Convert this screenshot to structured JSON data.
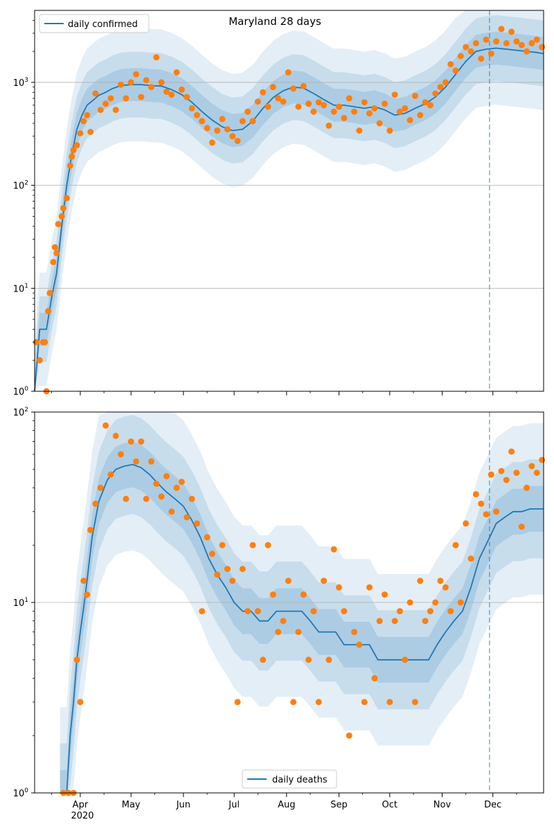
{
  "figure_title": "Maryland 28 days",
  "chart_data": [
    {
      "type": "line",
      "title": "Maryland 28 days",
      "xlabel": "",
      "ylabel": "",
      "yscale": "log",
      "ylim": [
        1,
        5000
      ],
      "xlim": [
        "2020-03-05",
        "2020-12-31"
      ],
      "grid": "y",
      "legend_position": "top-left",
      "ytick_labels": [
        "10^0",
        "10^1",
        "10^2",
        "10^3"
      ],
      "ytick_values": [
        1,
        10,
        100,
        1000
      ],
      "vline": "2020-11-29",
      "series": [
        {
          "name": "daily confirmed",
          "kind": "line",
          "color": "#1f77b4",
          "x": [
            "2020-03-05",
            "2020-03-08",
            "2020-03-12",
            "2020-03-15",
            "2020-03-18",
            "2020-03-21",
            "2020-03-24",
            "2020-03-27",
            "2020-03-30",
            "2020-04-02",
            "2020-04-05",
            "2020-04-09",
            "2020-04-12",
            "2020-04-16",
            "2020-04-20",
            "2020-04-25",
            "2020-05-01",
            "2020-05-07",
            "2020-05-13",
            "2020-05-19",
            "2020-05-25",
            "2020-05-31",
            "2020-06-06",
            "2020-06-12",
            "2020-06-18",
            "2020-06-24",
            "2020-06-30",
            "2020-07-06",
            "2020-07-12",
            "2020-07-18",
            "2020-07-24",
            "2020-07-30",
            "2020-08-05",
            "2020-08-11",
            "2020-08-17",
            "2020-08-23",
            "2020-08-29",
            "2020-09-04",
            "2020-09-10",
            "2020-09-16",
            "2020-09-22",
            "2020-09-28",
            "2020-10-04",
            "2020-10-10",
            "2020-10-16",
            "2020-10-22",
            "2020-10-28",
            "2020-11-03",
            "2020-11-09",
            "2020-11-15",
            "2020-11-21",
            "2020-11-27",
            "2020-12-03",
            "2020-12-09",
            "2020-12-15",
            "2020-12-21",
            "2020-12-27",
            "2020-12-31"
          ],
          "y": [
            1,
            4,
            4,
            8,
            14,
            40,
            100,
            200,
            350,
            480,
            600,
            680,
            750,
            800,
            870,
            930,
            950,
            950,
            930,
            920,
            850,
            760,
            640,
            520,
            430,
            370,
            340,
            350,
            420,
            560,
            710,
            830,
            900,
            880,
            780,
            680,
            600,
            600,
            580,
            560,
            580,
            540,
            480,
            500,
            560,
            620,
            720,
            900,
            1200,
            1600,
            2000,
            2100,
            2150,
            2100,
            2050,
            2000,
            1950,
            1900
          ]
        },
        {
          "name": "",
          "kind": "points",
          "color": "#ff7f0e",
          "x": [
            "2020-03-06",
            "2020-03-08",
            "2020-03-10",
            "2020-03-11",
            "2020-03-12",
            "2020-03-13",
            "2020-03-14",
            "2020-03-16",
            "2020-03-17",
            "2020-03-18",
            "2020-03-19",
            "2020-03-21",
            "2020-03-22",
            "2020-03-24",
            "2020-03-26",
            "2020-03-27",
            "2020-03-28",
            "2020-03-30",
            "2020-04-01",
            "2020-04-03",
            "2020-04-05",
            "2020-04-07",
            "2020-04-10",
            "2020-04-13",
            "2020-04-16",
            "2020-04-19",
            "2020-04-22",
            "2020-04-25",
            "2020-04-28",
            "2020-05-01",
            "2020-05-04",
            "2020-05-07",
            "2020-05-10",
            "2020-05-13",
            "2020-05-16",
            "2020-05-19",
            "2020-05-22",
            "2020-05-25",
            "2020-05-28",
            "2020-05-31",
            "2020-06-03",
            "2020-06-06",
            "2020-06-09",
            "2020-06-12",
            "2020-06-15",
            "2020-06-18",
            "2020-06-21",
            "2020-06-24",
            "2020-06-27",
            "2020-06-30",
            "2020-07-03",
            "2020-07-06",
            "2020-07-09",
            "2020-07-12",
            "2020-07-15",
            "2020-07-18",
            "2020-07-21",
            "2020-07-24",
            "2020-07-27",
            "2020-07-30",
            "2020-08-02",
            "2020-08-05",
            "2020-08-08",
            "2020-08-11",
            "2020-08-14",
            "2020-08-17",
            "2020-08-20",
            "2020-08-23",
            "2020-08-26",
            "2020-08-29",
            "2020-09-01",
            "2020-09-04",
            "2020-09-07",
            "2020-09-10",
            "2020-09-13",
            "2020-09-16",
            "2020-09-19",
            "2020-09-22",
            "2020-09-25",
            "2020-09-28",
            "2020-10-01",
            "2020-10-04",
            "2020-10-07",
            "2020-10-10",
            "2020-10-13",
            "2020-10-16",
            "2020-10-19",
            "2020-10-22",
            "2020-10-25",
            "2020-10-28",
            "2020-10-31",
            "2020-11-03",
            "2020-11-06",
            "2020-11-09",
            "2020-11-12",
            "2020-11-15",
            "2020-11-18",
            "2020-11-21",
            "2020-11-24",
            "2020-11-27",
            "2020-11-30",
            "2020-12-03",
            "2020-12-06",
            "2020-12-09",
            "2020-12-12",
            "2020-12-15",
            "2020-12-18",
            "2020-12-21",
            "2020-12-24",
            "2020-12-27",
            "2020-12-30"
          ],
          "y": [
            3,
            2,
            3,
            3,
            1,
            6,
            9,
            18,
            25,
            22,
            42,
            50,
            60,
            75,
            155,
            190,
            220,
            245,
            320,
            420,
            480,
            330,
            780,
            540,
            620,
            700,
            540,
            950,
            700,
            1000,
            1200,
            720,
            1050,
            900,
            1750,
            1000,
            810,
            760,
            1250,
            850,
            720,
            560,
            480,
            420,
            360,
            260,
            340,
            440,
            350,
            300,
            270,
            420,
            520,
            420,
            650,
            800,
            580,
            900,
            700,
            650,
            1250,
            870,
            580,
            920,
            620,
            520,
            640,
            600,
            380,
            520,
            580,
            450,
            700,
            520,
            340,
            640,
            500,
            560,
            400,
            620,
            340,
            760,
            520,
            560,
            430,
            740,
            480,
            640,
            600,
            780,
            900,
            1000,
            1500,
            1300,
            1800,
            2200,
            2000,
            2400,
            1700,
            2600,
            1900,
            2500,
            3300,
            2400,
            3100,
            2500,
            2300,
            2000,
            2400,
            2600,
            2200
          ]
        }
      ]
    },
    {
      "type": "line",
      "title": "",
      "xlabel": "",
      "ylabel": "",
      "yscale": "log",
      "ylim": [
        1,
        100
      ],
      "xlim": [
        "2020-03-05",
        "2020-12-31"
      ],
      "grid": "y",
      "legend_position": "bottom-center",
      "ytick_labels": [
        "10^0",
        "10^1",
        "10^2"
      ],
      "ytick_values": [
        1,
        10,
        100
      ],
      "xtick_labels": [
        "Apr",
        "May",
        "Jun",
        "Jul",
        "Aug",
        "Sep",
        "Oct",
        "Nov",
        "Dec"
      ],
      "xtick_values": [
        "2020-04-01",
        "2020-05-01",
        "2020-06-01",
        "2020-07-01",
        "2020-08-01",
        "2020-09-01",
        "2020-10-01",
        "2020-11-01",
        "2020-12-01"
      ],
      "year_label": "2020",
      "vline": "2020-11-29",
      "series": [
        {
          "name": "daily deaths",
          "kind": "line",
          "color": "#1f77b4",
          "x": [
            "2020-03-20",
            "2020-03-24",
            "2020-03-26",
            "2020-03-28",
            "2020-03-30",
            "2020-04-01",
            "2020-04-04",
            "2020-04-08",
            "2020-04-12",
            "2020-04-17",
            "2020-04-22",
            "2020-04-27",
            "2020-05-02",
            "2020-05-07",
            "2020-05-12",
            "2020-05-17",
            "2020-05-22",
            "2020-05-27",
            "2020-06-01",
            "2020-06-06",
            "2020-06-11",
            "2020-06-16",
            "2020-06-21",
            "2020-06-26",
            "2020-07-01",
            "2020-07-06",
            "2020-07-11",
            "2020-07-16",
            "2020-07-21",
            "2020-07-26",
            "2020-07-31",
            "2020-08-05",
            "2020-08-10",
            "2020-08-15",
            "2020-08-20",
            "2020-08-25",
            "2020-08-30",
            "2020-09-04",
            "2020-09-09",
            "2020-09-14",
            "2020-09-19",
            "2020-09-24",
            "2020-09-29",
            "2020-10-04",
            "2020-10-09",
            "2020-10-14",
            "2020-10-19",
            "2020-10-24",
            "2020-10-29",
            "2020-11-03",
            "2020-11-08",
            "2020-11-13",
            "2020-11-18",
            "2020-11-23",
            "2020-11-28",
            "2020-12-03",
            "2020-12-08",
            "2020-12-13",
            "2020-12-18",
            "2020-12-23",
            "2020-12-31"
          ],
          "y": [
            1,
            1,
            2,
            3,
            5,
            7,
            11,
            22,
            34,
            44,
            50,
            52,
            53,
            51,
            47,
            42,
            38,
            35,
            32,
            27,
            22,
            17,
            14,
            12,
            10,
            9,
            9,
            8,
            8,
            9,
            9,
            9,
            9,
            8,
            7,
            7,
            7,
            6,
            6,
            6,
            6,
            5,
            5,
            5,
            5,
            5,
            5,
            5,
            6,
            7,
            8,
            9,
            12,
            17,
            21,
            26,
            28,
            30,
            30,
            31,
            31
          ]
        },
        {
          "name": "",
          "kind": "points",
          "color": "#ff7f0e",
          "x": [
            "2020-03-22",
            "2020-03-25",
            "2020-03-28",
            "2020-03-30",
            "2020-04-01",
            "2020-04-03",
            "2020-04-05",
            "2020-04-07",
            "2020-04-10",
            "2020-04-13",
            "2020-04-16",
            "2020-04-19",
            "2020-04-22",
            "2020-04-25",
            "2020-04-28",
            "2020-05-01",
            "2020-05-04",
            "2020-05-07",
            "2020-05-10",
            "2020-05-13",
            "2020-05-16",
            "2020-05-19",
            "2020-05-22",
            "2020-05-25",
            "2020-05-28",
            "2020-05-31",
            "2020-06-03",
            "2020-06-06",
            "2020-06-09",
            "2020-06-12",
            "2020-06-15",
            "2020-06-18",
            "2020-06-21",
            "2020-06-24",
            "2020-06-27",
            "2020-06-30",
            "2020-07-03",
            "2020-07-06",
            "2020-07-09",
            "2020-07-12",
            "2020-07-15",
            "2020-07-18",
            "2020-07-21",
            "2020-07-24",
            "2020-07-27",
            "2020-07-30",
            "2020-08-02",
            "2020-08-05",
            "2020-08-08",
            "2020-08-11",
            "2020-08-14",
            "2020-08-17",
            "2020-08-20",
            "2020-08-23",
            "2020-08-26",
            "2020-08-29",
            "2020-09-01",
            "2020-09-04",
            "2020-09-07",
            "2020-09-10",
            "2020-09-13",
            "2020-09-16",
            "2020-09-19",
            "2020-09-22",
            "2020-09-25",
            "2020-09-28",
            "2020-10-01",
            "2020-10-04",
            "2020-10-07",
            "2020-10-10",
            "2020-10-13",
            "2020-10-16",
            "2020-10-19",
            "2020-10-22",
            "2020-10-25",
            "2020-10-28",
            "2020-10-31",
            "2020-11-03",
            "2020-11-06",
            "2020-11-09",
            "2020-11-12",
            "2020-11-15",
            "2020-11-18",
            "2020-11-21",
            "2020-11-24",
            "2020-11-27",
            "2020-11-30",
            "2020-12-03",
            "2020-12-06",
            "2020-12-09",
            "2020-12-12",
            "2020-12-15",
            "2020-12-18",
            "2020-12-21",
            "2020-12-24",
            "2020-12-27",
            "2020-12-30"
          ],
          "y": [
            1,
            1,
            1,
            5,
            3,
            13,
            11,
            24,
            33,
            40,
            85,
            47,
            75,
            60,
            35,
            70,
            55,
            70,
            35,
            55,
            42,
            36,
            46,
            30,
            40,
            43,
            28,
            35,
            26,
            9,
            22,
            18,
            14,
            20,
            15,
            13,
            3,
            15,
            9,
            20,
            9,
            5,
            20,
            11,
            7,
            8,
            13,
            3,
            7,
            11,
            5,
            9,
            3,
            13,
            5,
            19,
            12,
            9,
            2,
            7,
            6,
            3,
            12,
            4,
            8,
            11,
            3,
            8,
            9,
            5,
            10,
            3,
            13,
            8,
            9,
            10,
            13,
            12,
            9,
            20,
            10,
            26,
            17,
            37,
            33,
            29,
            47,
            30,
            49,
            44,
            62,
            48,
            25,
            40,
            52,
            48,
            56
          ]
        }
      ]
    }
  ]
}
